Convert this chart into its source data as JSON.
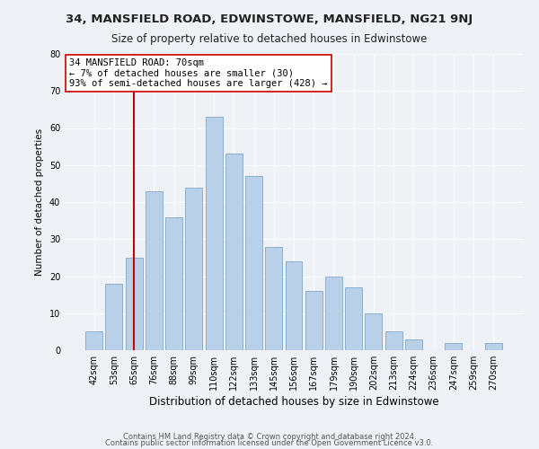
{
  "title1": "34, MANSFIELD ROAD, EDWINSTOWE, MANSFIELD, NG21 9NJ",
  "title2": "Size of property relative to detached houses in Edwinstowe",
  "xlabel": "Distribution of detached houses by size in Edwinstowe",
  "ylabel": "Number of detached properties",
  "bar_labels": [
    "42sqm",
    "53sqm",
    "65sqm",
    "76sqm",
    "88sqm",
    "99sqm",
    "110sqm",
    "122sqm",
    "133sqm",
    "145sqm",
    "156sqm",
    "167sqm",
    "179sqm",
    "190sqm",
    "202sqm",
    "213sqm",
    "224sqm",
    "236sqm",
    "247sqm",
    "259sqm",
    "270sqm"
  ],
  "bar_values": [
    5,
    18,
    25,
    43,
    36,
    44,
    63,
    53,
    47,
    28,
    24,
    16,
    20,
    17,
    10,
    5,
    3,
    0,
    2,
    0,
    2
  ],
  "bar_color": "#b8d0e8",
  "bar_edge_color": "#8ab0d0",
  "vline_index": 2,
  "vline_color": "#cc0000",
  "annotation_line1": "34 MANSFIELD ROAD: 70sqm",
  "annotation_line2": "← 7% of detached houses are smaller (30)",
  "annotation_line3": "93% of semi-detached houses are larger (428) →",
  "annotation_box_color": "#ffffff",
  "annotation_box_edge": "#cc0000",
  "ylim": [
    0,
    80
  ],
  "yticks": [
    0,
    10,
    20,
    30,
    40,
    50,
    60,
    70,
    80
  ],
  "footer1": "Contains HM Land Registry data © Crown copyright and database right 2024.",
  "footer2": "Contains public sector information licensed under the Open Government Licence v3.0.",
  "bg_color": "#eef2f7",
  "title1_fontsize": 9.5,
  "title2_fontsize": 8.5,
  "xlabel_fontsize": 8.5,
  "ylabel_fontsize": 7.5,
  "tick_fontsize": 7,
  "annotation_fontsize": 7.5,
  "footer_fontsize": 6.0
}
